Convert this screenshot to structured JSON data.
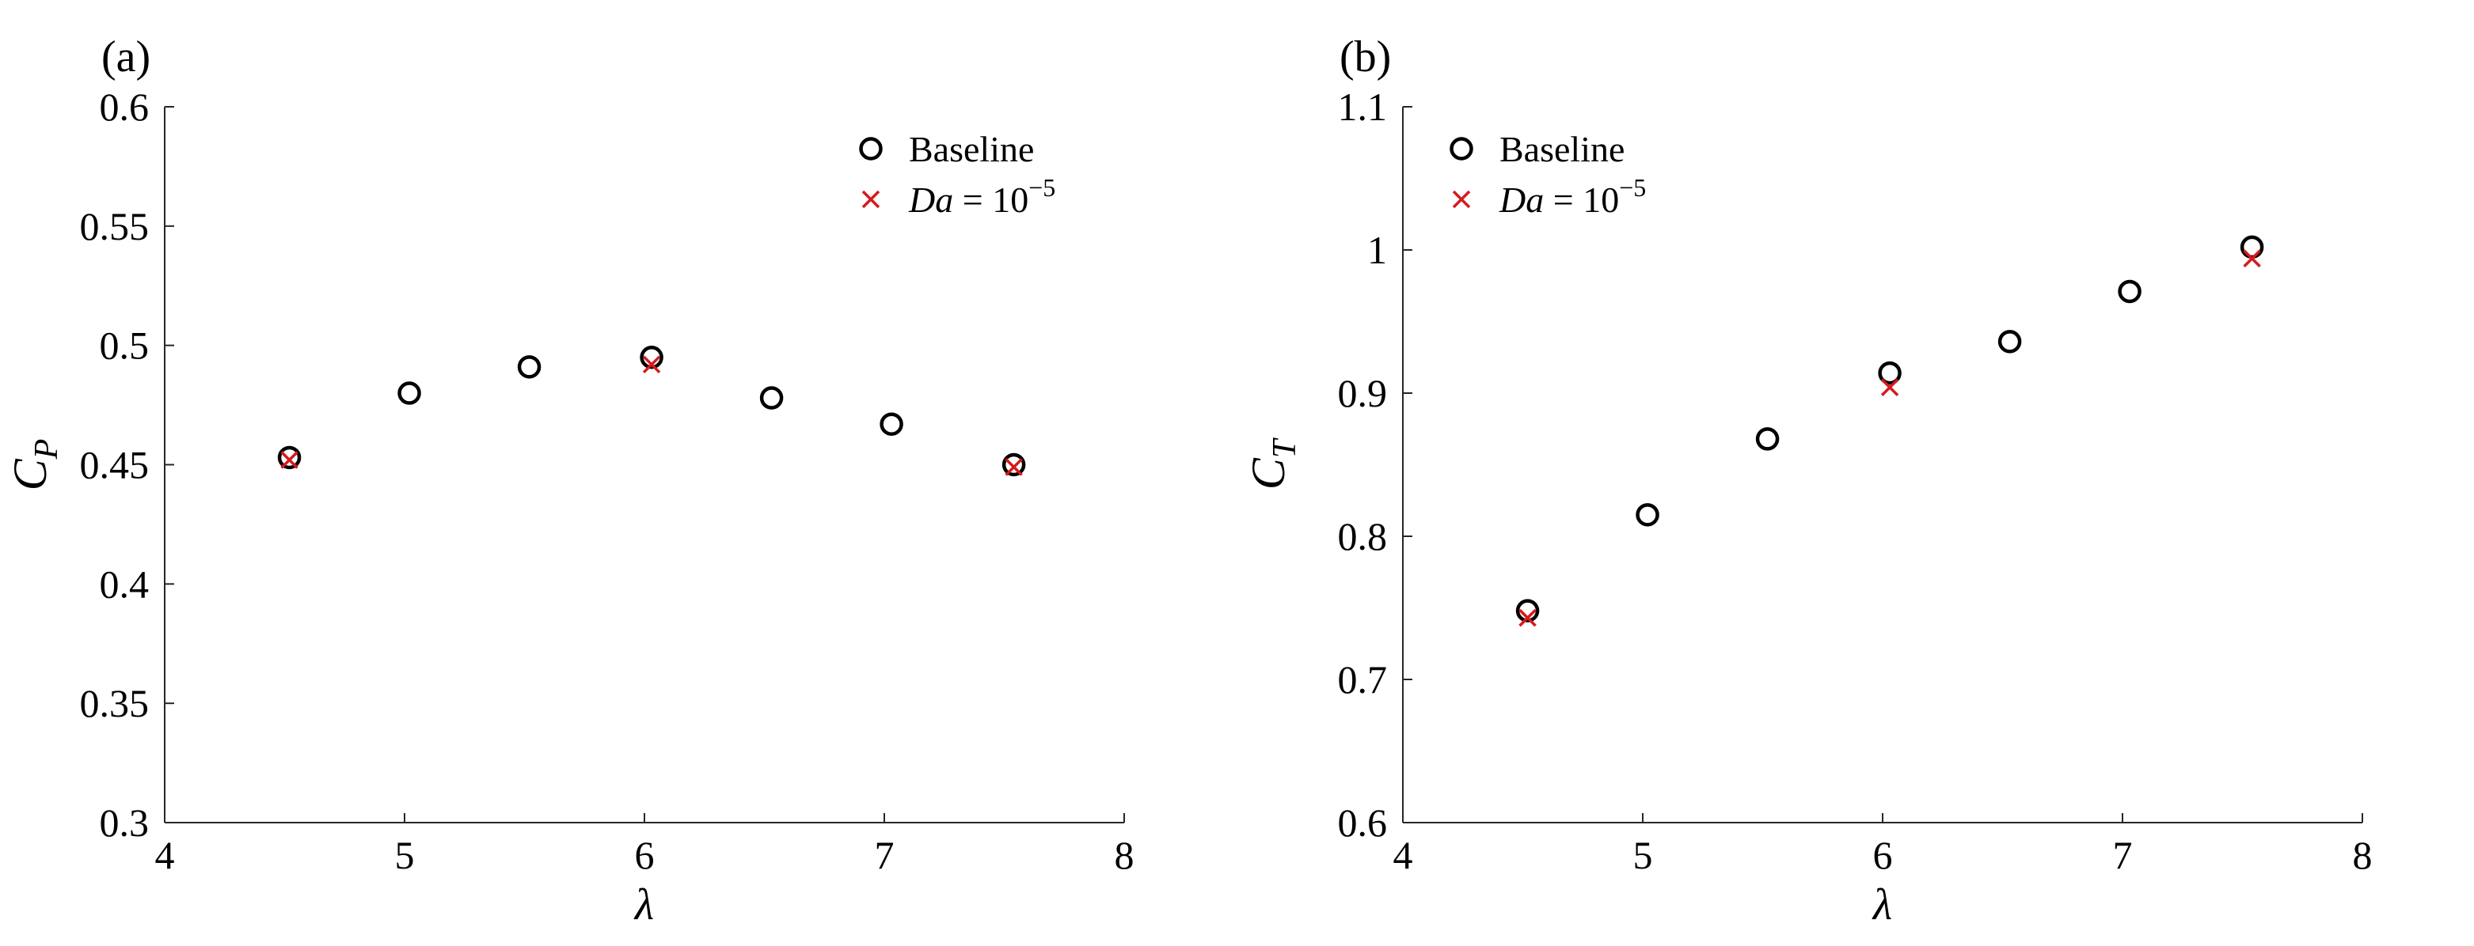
{
  "colors": {
    "baseline": "#000000",
    "darcy": "#d7191c",
    "axis": "#262626"
  },
  "chart_data": [
    {
      "panel": "(a)",
      "type": "scatter",
      "ylabel": {
        "main": "C",
        "sub": "P"
      },
      "xlabel": "λ",
      "xlim": [
        4,
        8
      ],
      "ylim": [
        0.3,
        0.6
      ],
      "xticks": [
        "4",
        "5",
        "6",
        "7",
        "8"
      ],
      "yticks": [
        "0.3",
        "0.35",
        "0.4",
        "0.45",
        "0.5",
        "0.55",
        "0.6"
      ],
      "grid": false,
      "legend_position": "top-right",
      "series": [
        {
          "name": "Baseline",
          "marker": "circle",
          "x": [
            4.52,
            5.02,
            5.52,
            6.03,
            6.53,
            7.03,
            7.54
          ],
          "y": [
            0.453,
            0.48,
            0.491,
            0.495,
            0.478,
            0.467,
            0.45
          ]
        },
        {
          "name": "Da = 10^-5",
          "legend": {
            "symbol": "Da",
            "rel": " = ",
            "base": "10",
            "exp": "−5"
          },
          "marker": "x",
          "x": [
            4.52,
            6.03,
            7.54
          ],
          "y": [
            0.452,
            0.492,
            0.449
          ]
        }
      ]
    },
    {
      "panel": "(b)",
      "type": "scatter",
      "ylabel": {
        "main": "C",
        "sub": "T"
      },
      "xlabel": "λ",
      "xlim": [
        4,
        8
      ],
      "ylim": [
        0.6,
        1.1
      ],
      "xticks": [
        "4",
        "5",
        "6",
        "7",
        "8"
      ],
      "yticks": [
        "0.6",
        "0.7",
        "0.8",
        "0.9",
        "1",
        "1.1"
      ],
      "grid": false,
      "legend_position": "top-left",
      "series": [
        {
          "name": "Baseline",
          "marker": "circle",
          "x": [
            4.52,
            5.02,
            5.52,
            6.03,
            6.53,
            7.03,
            7.54
          ],
          "y": [
            0.748,
            0.815,
            0.868,
            0.914,
            0.936,
            0.971,
            1.002
          ]
        },
        {
          "name": "Da = 10^-5",
          "legend": {
            "symbol": "Da",
            "rel": " = ",
            "base": "10",
            "exp": "−5"
          },
          "marker": "x",
          "x": [
            4.52,
            6.03,
            7.54
          ],
          "y": [
            0.743,
            0.904,
            0.994
          ]
        }
      ]
    }
  ]
}
